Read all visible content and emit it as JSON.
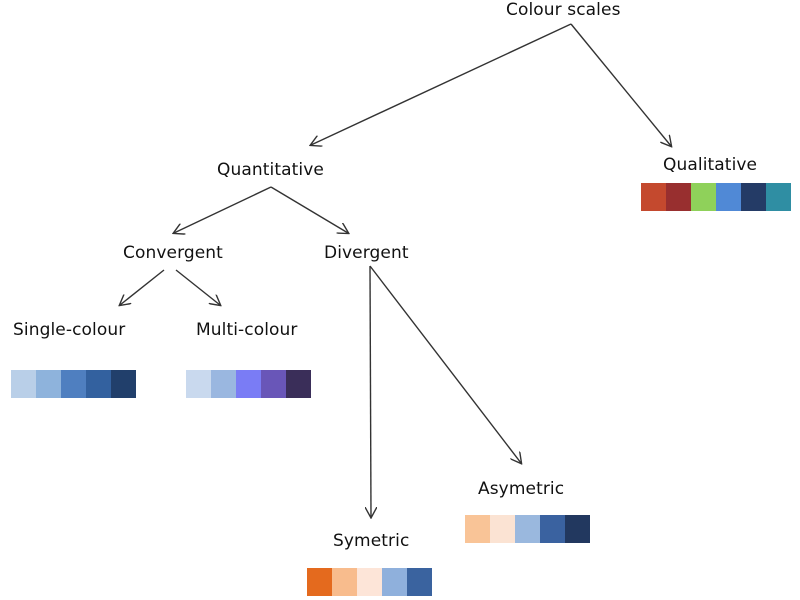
{
  "nodes": {
    "root": "Colour scales",
    "qualitative": "Qualitative",
    "quantitative": "Quantitative",
    "convergent": "Convergent",
    "divergent": "Divergent",
    "single_colour": "Single-colour",
    "multi_colour": "Multi-colour",
    "asymetric": "Asymetric",
    "symetric": "Symetric"
  },
  "palettes": {
    "qualitative": [
      "#c4492e",
      "#982f2f",
      "#8fd15a",
      "#5089d6",
      "#243b66",
      "#2f8ea3"
    ],
    "single_colour": [
      "#b9cfe8",
      "#8eb3dc",
      "#4f7fc0",
      "#33619f",
      "#213f6b"
    ],
    "multi_colour": [
      "#c9d9ee",
      "#9ab7e0",
      "#7a7cf5",
      "#6956b8",
      "#3a2e59"
    ],
    "asymetric": [
      "#f9c497",
      "#fbe3d3",
      "#9ab8de",
      "#3a62a0",
      "#22385f"
    ],
    "symetric": [
      "#e46a1e",
      "#f8bc8d",
      "#fde5d8",
      "#8fb0dc",
      "#3a639f"
    ]
  },
  "arrow_color": "#333333"
}
